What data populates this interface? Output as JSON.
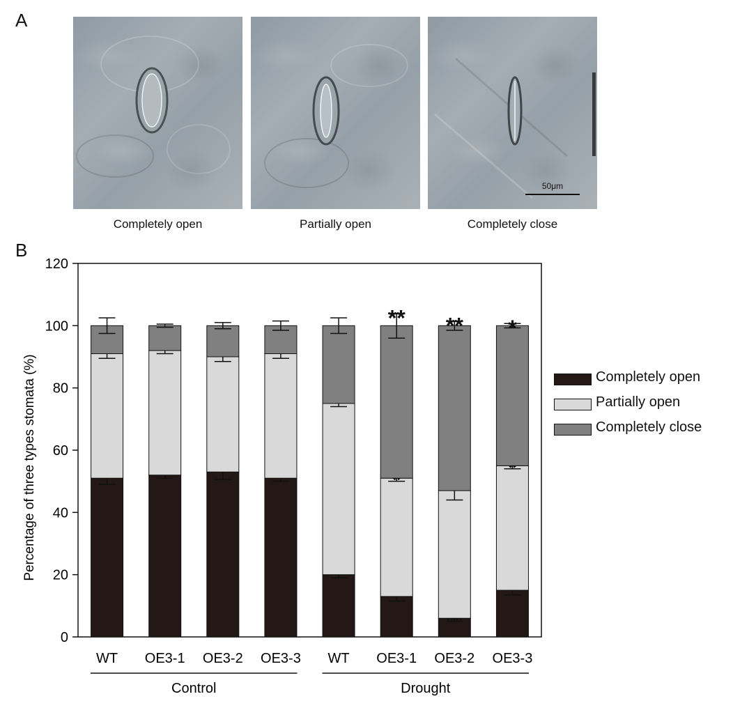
{
  "panel_a": {
    "letter": "A",
    "images": [
      {
        "label": "Completely open"
      },
      {
        "label": "Partially open"
      },
      {
        "label": "Completely close"
      }
    ],
    "scale_bar_label": "50μm"
  },
  "panel_b": {
    "letter": "B"
  },
  "colors": {
    "completely_open": "#231815",
    "partially_open": "#d9d9d9",
    "completely_close": "#808080"
  },
  "chart_data": {
    "type": "bar",
    "stacked": true,
    "ylabel": "Percentage of three types stomata (%)",
    "xlabel": "",
    "ylim": [
      0,
      120
    ],
    "yticks": [
      0,
      20,
      40,
      60,
      80,
      100,
      120
    ],
    "categories": [
      "WT",
      "OE3-1",
      "OE3-2",
      "OE3-3",
      "WT",
      "OE3-1",
      "OE3-2",
      "OE3-3"
    ],
    "groups": [
      {
        "label": "Control",
        "indices": [
          0,
          1,
          2,
          3
        ]
      },
      {
        "label": "Drought",
        "indices": [
          4,
          5,
          6,
          7
        ]
      }
    ],
    "series": [
      {
        "name": "Completely open",
        "values": [
          51,
          52,
          53,
          51,
          20,
          13,
          6,
          15
        ],
        "error": [
          2,
          1,
          2.5,
          1,
          1,
          1.5,
          1,
          1.5
        ]
      },
      {
        "name": "Partially open",
        "values": [
          40,
          40,
          37,
          40,
          55,
          38,
          41,
          40
        ],
        "error": [
          1.5,
          1,
          1.5,
          1.5,
          1,
          1,
          3,
          1
        ]
      },
      {
        "name": "Completely close",
        "values": [
          9,
          8,
          10,
          9,
          25,
          49,
          53,
          45
        ],
        "error": [
          2.5,
          0.5,
          1,
          1.5,
          2.5,
          4,
          1.5,
          0.7
        ]
      }
    ],
    "significance": {
      "Completely open": [
        "",
        "",
        "",
        "",
        "",
        "*",
        "**",
        "*"
      ],
      "Partially open": [
        "",
        "",
        "",
        "",
        "",
        "*",
        "*",
        "*"
      ],
      "Completely close": [
        "",
        "",
        "",
        "",
        "",
        "**",
        "**",
        "*"
      ]
    },
    "legend": "right",
    "grid": false
  }
}
